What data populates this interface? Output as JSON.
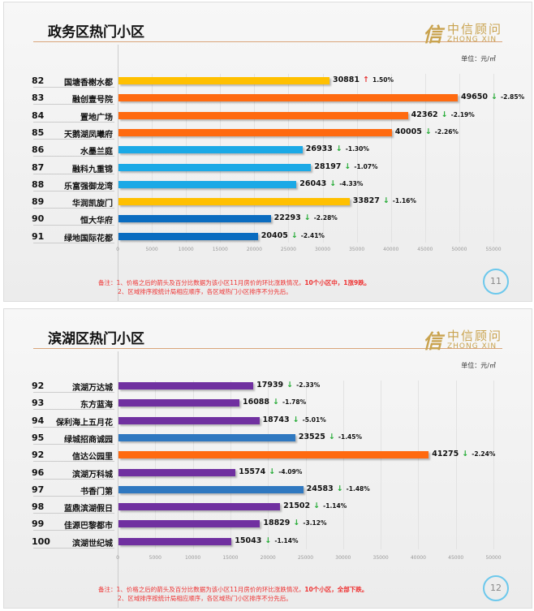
{
  "logo": {
    "mark": "信",
    "cn": "中信顾问",
    "en": "ZHONG XIN"
  },
  "unit_label": "单位：元/㎡",
  "colors": {
    "yellow": "#FFC000",
    "orange": "#FF6A10",
    "lightblue": "#1BA9E6",
    "darkblue": "#0A6CC0",
    "blue": "#2F78C0",
    "purple": "#7030A0",
    "up": "#e53030",
    "down": "#22aa33"
  },
  "chart_data": [
    {
      "type": "bar",
      "title": "政务区热门小区",
      "xlim": [
        0,
        55000
      ],
      "ticks": [
        0,
        5000,
        10000,
        15000,
        20000,
        25000,
        30000,
        35000,
        40000,
        45000,
        50000,
        55000
      ],
      "rows": [
        {
          "rank": "82",
          "name": "国塘香榭水都",
          "value": 30881,
          "dir": "up",
          "change": "1.50%",
          "color": "yellow"
        },
        {
          "rank": "83",
          "name": "融创壹号院",
          "value": 49650,
          "dir": "down",
          "change": "-2.85%",
          "color": "orange"
        },
        {
          "rank": "84",
          "name": "置地广场",
          "value": 42362,
          "dir": "down",
          "change": "-2.19%",
          "color": "orange"
        },
        {
          "rank": "85",
          "name": "天鹅湖凤曦府",
          "value": 40005,
          "dir": "down",
          "change": "-2.26%",
          "color": "orange"
        },
        {
          "rank": "86",
          "name": "水墨兰庭",
          "value": 26933,
          "dir": "down",
          "change": "-1.30%",
          "color": "lightblue"
        },
        {
          "rank": "87",
          "name": "融科九重锦",
          "value": 28197,
          "dir": "down",
          "change": "-1.07%",
          "color": "lightblue"
        },
        {
          "rank": "88",
          "name": "乐富强御龙湾",
          "value": 26043,
          "dir": "down",
          "change": "-4.33%",
          "color": "lightblue"
        },
        {
          "rank": "89",
          "name": "华润凯旋门",
          "value": 33827,
          "dir": "down",
          "change": "-1.16%",
          "color": "yellow"
        },
        {
          "rank": "90",
          "name": "恒大华府",
          "value": 22293,
          "dir": "down",
          "change": "-2.28%",
          "color": "darkblue"
        },
        {
          "rank": "91",
          "name": "绿地国际花都",
          "value": 20405,
          "dir": "down",
          "change": "-2.41%",
          "color": "darkblue"
        }
      ],
      "note1": "备注：1、价格之后的箭头及百分比数据为该小区11月房价的环比涨跌情况，",
      "note1b": "10个小区中，1涨9跌。",
      "note2": "2、区域排序按统计局相应顺序，各区域热门小区排序不分先后。",
      "page": "11"
    },
    {
      "type": "bar",
      "title": "滨湖区热门小区",
      "xlim": [
        0,
        50000
      ],
      "ticks": [
        0,
        5000,
        10000,
        15000,
        20000,
        25000,
        30000,
        35000,
        40000,
        45000,
        50000
      ],
      "rows": [
        {
          "rank": "92",
          "name": "滨湖万达城",
          "value": 17939,
          "dir": "down",
          "change": "-2.33%",
          "color": "purple"
        },
        {
          "rank": "93",
          "name": "东方蓝海",
          "value": 16088,
          "dir": "down",
          "change": "-1.78%",
          "color": "purple"
        },
        {
          "rank": "94",
          "name": "保利海上五月花",
          "value": 18743,
          "dir": "down",
          "change": "-5.01%",
          "color": "purple"
        },
        {
          "rank": "95",
          "name": "绿城招商诚园",
          "value": 23525,
          "dir": "down",
          "change": "-1.45%",
          "color": "blue"
        },
        {
          "rank": "92",
          "name": "信达公园里",
          "value": 41275,
          "dir": "down",
          "change": "-2.24%",
          "color": "orange"
        },
        {
          "rank": "96",
          "name": "滨湖万科城",
          "value": 15574,
          "dir": "down",
          "change": "-4.09%",
          "color": "purple"
        },
        {
          "rank": "97",
          "name": "书香门第",
          "value": 24583,
          "dir": "down",
          "change": "-1.48%",
          "color": "blue"
        },
        {
          "rank": "98",
          "name": "蓝鼎滨湖假日",
          "value": 21502,
          "dir": "down",
          "change": "-1.14%",
          "color": "purple"
        },
        {
          "rank": "99",
          "name": "佳源巴黎都市",
          "value": 18829,
          "dir": "down",
          "change": "-3.12%",
          "color": "purple"
        },
        {
          "rank": "100",
          "name": "滨湖世纪城",
          "value": 15043,
          "dir": "down",
          "change": "-1.14%",
          "color": "purple"
        }
      ],
      "note1": "备注：1、价格之后的箭头及百分比数据为该小区11月房价的环比涨跌情况，",
      "note1b": "10个小区，全部下跌。",
      "note2": "2、区域排序按统计局相应顺序，各区域热门小区排序不分先后。",
      "page": "12"
    }
  ]
}
